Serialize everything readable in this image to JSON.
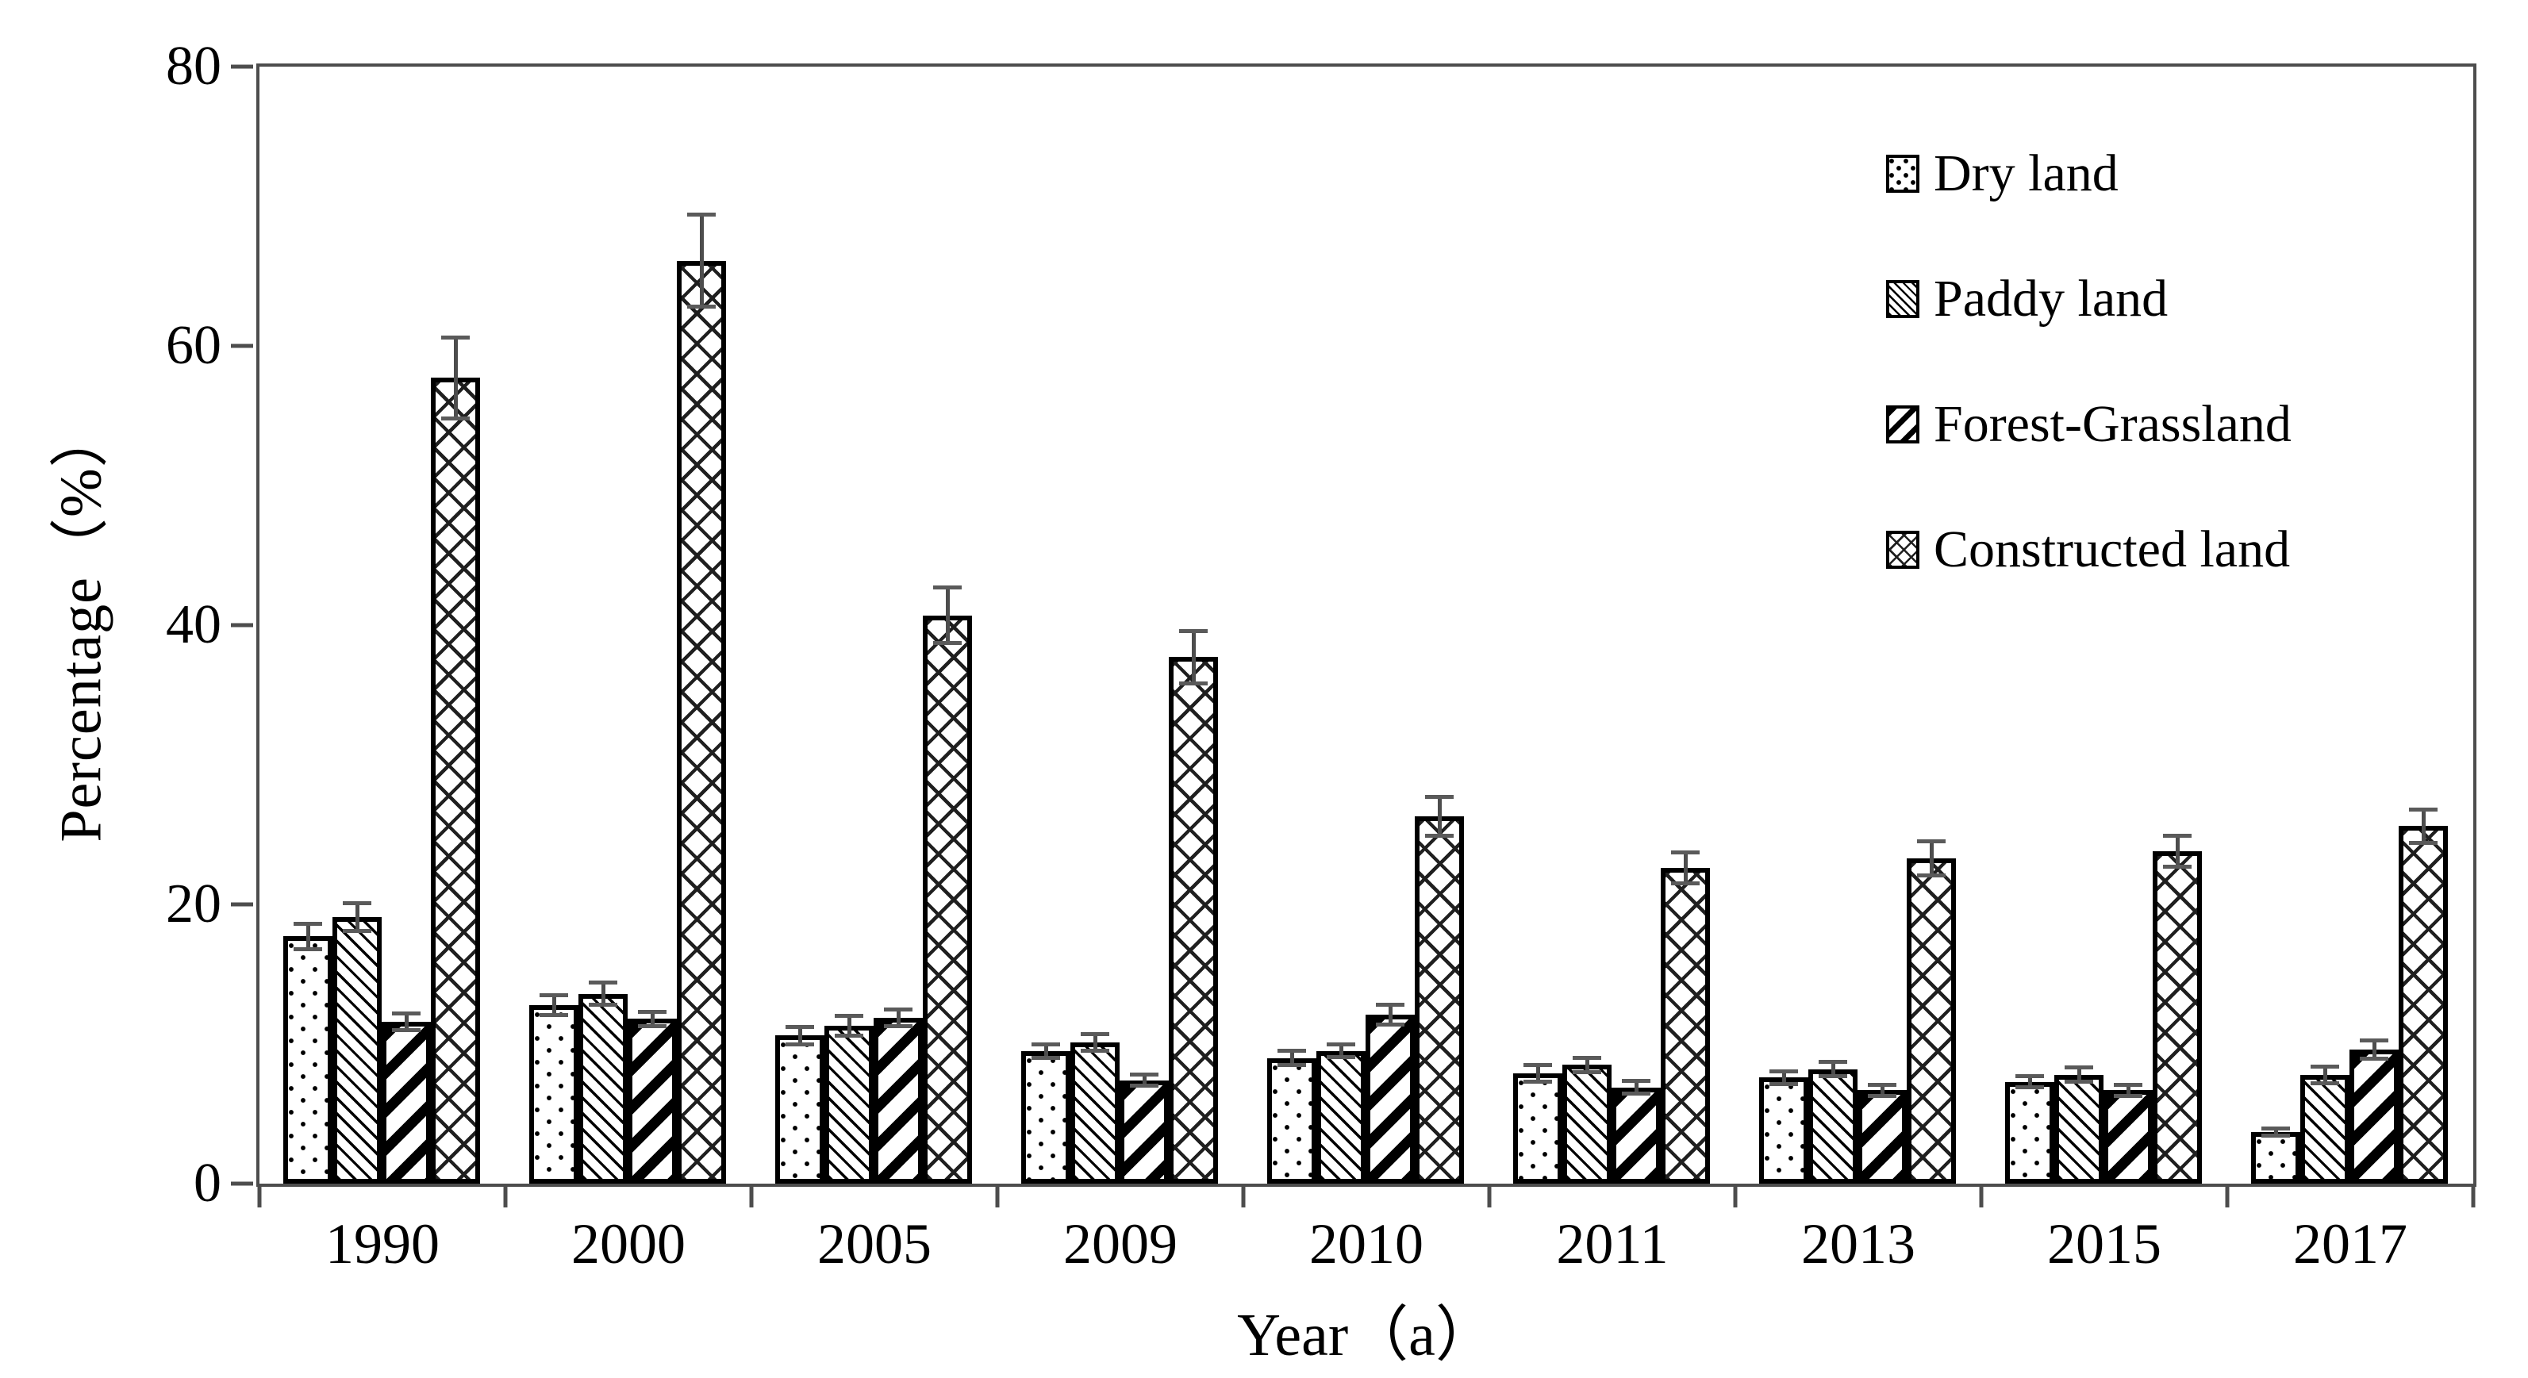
{
  "figure": {
    "background": "#ffffff"
  },
  "colors": {
    "bar_fill": "#ffffff",
    "bar_border": "#000000",
    "axis": "#4d4d4d",
    "error_bar": "#5a5a5a",
    "text": "#000000"
  },
  "chart_data": {
    "type": "bar",
    "title": "",
    "xlabel": "Year（a）",
    "ylabel": "Percentage（%）",
    "ylim": [
      0,
      80
    ],
    "yticks": [
      0,
      20,
      40,
      60,
      80
    ],
    "grid": false,
    "plot_frame": true,
    "legend_position": "top-right-inside",
    "error_bars": "symmetric",
    "categories": [
      "1990",
      "2000",
      "2005",
      "2009",
      "2010",
      "2011",
      "2013",
      "2015",
      "2017"
    ],
    "series": [
      {
        "name": "Dry land",
        "pattern": "dots",
        "values": [
          17.7,
          12.8,
          10.6,
          9.5,
          9.0,
          7.9,
          7.6,
          7.3,
          3.7
        ],
        "errors": [
          0.9,
          0.7,
          0.6,
          0.5,
          0.5,
          0.6,
          0.45,
          0.4,
          0.25
        ]
      },
      {
        "name": "Paddy land",
        "pattern": "diagonal-dense",
        "values": [
          19.1,
          13.6,
          11.3,
          10.1,
          9.5,
          8.5,
          8.2,
          7.8,
          7.8
        ],
        "errors": [
          1.0,
          0.8,
          0.7,
          0.6,
          0.45,
          0.5,
          0.5,
          0.5,
          0.6
        ]
      },
      {
        "name": "Forest-Grassland",
        "pattern": "diagonal-wide",
        "values": [
          11.6,
          11.8,
          11.9,
          7.4,
          12.1,
          6.9,
          6.7,
          6.7,
          9.6
        ],
        "errors": [
          0.6,
          0.5,
          0.6,
          0.4,
          0.7,
          0.45,
          0.4,
          0.4,
          0.65
        ]
      },
      {
        "name": "Constructed land",
        "pattern": "crosshatch",
        "values": [
          57.7,
          66.1,
          40.7,
          37.7,
          26.3,
          22.6,
          23.3,
          23.8,
          25.6
        ],
        "errors": [
          2.9,
          3.3,
          2.0,
          1.9,
          1.4,
          1.1,
          1.2,
          1.1,
          1.2
        ]
      }
    ]
  }
}
